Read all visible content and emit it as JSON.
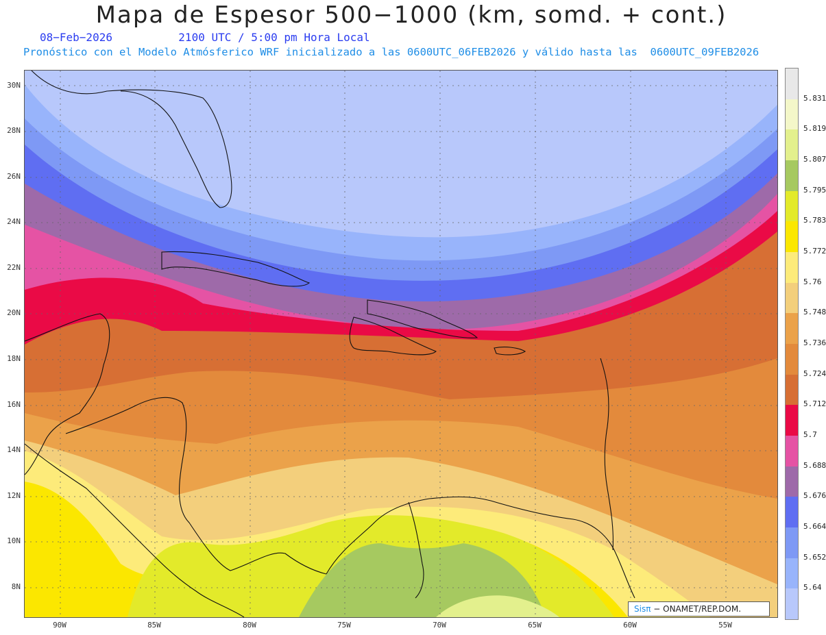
{
  "header": {
    "title": "Mapa de Espesor 500−1000 (km, somd. + cont.)",
    "date": "08−Feb−2026",
    "time": "2100 UTC / 5:00 pm Hora Local",
    "forecast": "Pronóstico con el Modelo Atmósferico WRF inicializado a las 0600UTC_06FEB2026 y válido hasta las  0600UTC_09FEB2026"
  },
  "axes": {
    "lat_labels": [
      "30N",
      "28N",
      "26N",
      "24N",
      "22N",
      "20N",
      "18N",
      "16N",
      "14N",
      "12N",
      "10N",
      "8N"
    ],
    "lon_labels": [
      "90W",
      "85W",
      "80W",
      "75W",
      "70W",
      "65W",
      "60W",
      "55W"
    ]
  },
  "colorbar": {
    "labels": [
      "5.831",
      "5.819",
      "5.807",
      "5.795",
      "5.783",
      "5.772",
      "5.76",
      "5.748",
      "5.736",
      "5.724",
      "5.712",
      "5.7",
      "5.688",
      "5.676",
      "5.664",
      "5.652",
      "5.64"
    ],
    "colors": [
      "#e8e8e8",
      "#f4f7c9",
      "#e3f08d",
      "#a6c960",
      "#e3ea2a",
      "#fbe700",
      "#fdeb7a",
      "#f3cf7c",
      "#eba24a",
      "#e38a3c",
      "#d76f34",
      "#ea0a46",
      "#e553a4",
      "#9e6aa9",
      "#5f6ef2",
      "#7e99f5",
      "#98b4fb",
      "#b8c8fb"
    ]
  },
  "credit": {
    "sis": "Sisπ",
    "org": "− ONAMET/REP.DOM."
  }
}
